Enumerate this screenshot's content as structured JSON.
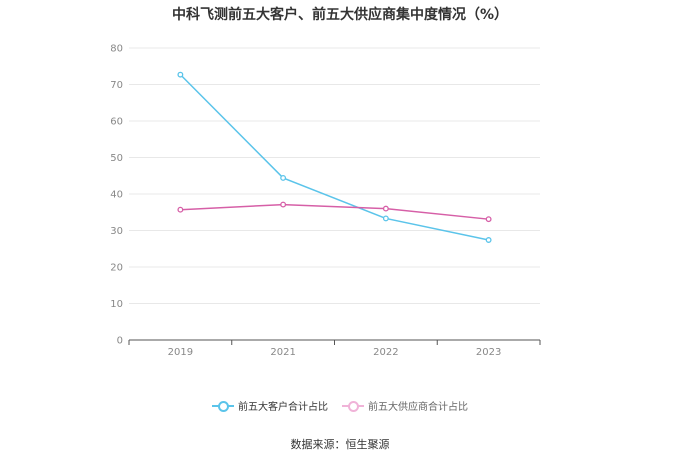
{
  "chart_data": {
    "type": "line",
    "title": "中科飞测前五大客户、前五大供应商集中度情况（%）",
    "categories": [
      "2019",
      "2021",
      "2022",
      "2023"
    ],
    "series": [
      {
        "name": "前五大客户合计占比",
        "color": "#5bc4ea",
        "values": [
          72.7,
          44.4,
          33.3,
          27.4
        ]
      },
      {
        "name": "前五大供应商合计占比",
        "color": "#d65fa7",
        "values": [
          35.7,
          37.1,
          36.0,
          33.1
        ]
      }
    ],
    "ylim": [
      0,
      80
    ],
    "yticks": [
      0,
      10,
      20,
      30,
      40,
      50,
      60,
      70,
      80
    ],
    "grid": true,
    "legend_position": "bottom"
  },
  "source_text": "数据来源：恒生聚源"
}
